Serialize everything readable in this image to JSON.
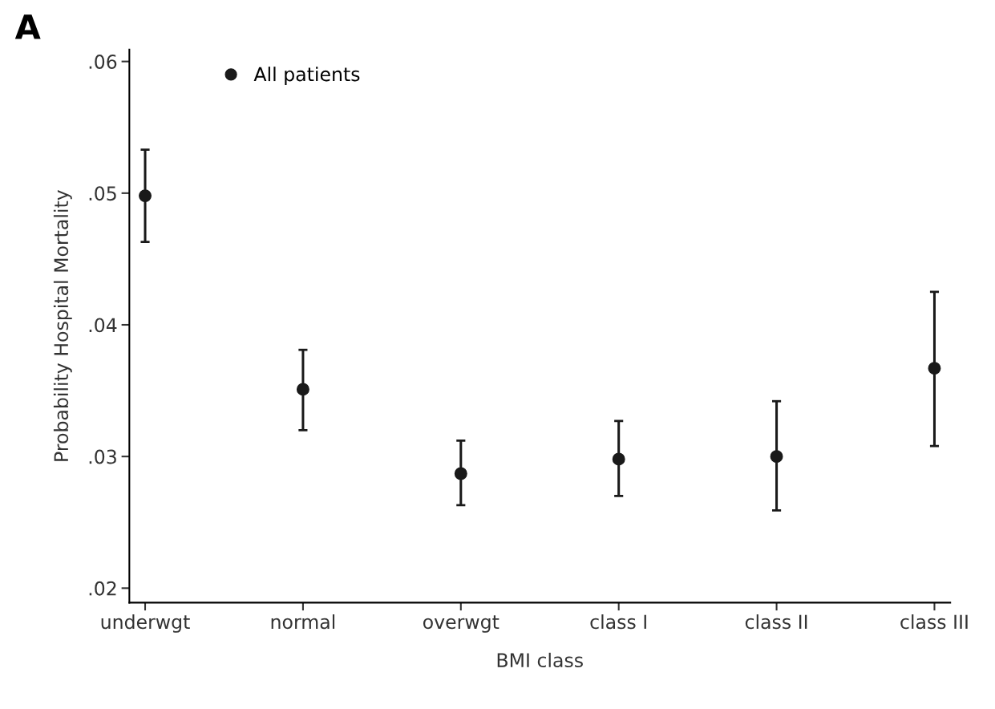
{
  "chart_data": {
    "type": "scatter",
    "title": "A",
    "xlabel": "BMI class",
    "ylabel": "Probability Hospital Mortality",
    "categories": [
      "underwgt",
      "normal",
      "overwgt",
      "class I",
      "class II",
      "class III"
    ],
    "series": [
      {
        "name": "All patients",
        "color": "#1a1a1a",
        "values": [
          0.0498,
          0.0351,
          0.0287,
          0.0298,
          0.03,
          0.0367
        ],
        "errors": [
          [
            0.0463,
            0.0533
          ],
          [
            0.032,
            0.0381
          ],
          [
            0.0263,
            0.0312
          ],
          [
            0.027,
            0.0327
          ],
          [
            0.0259,
            0.0342
          ],
          [
            0.0308,
            0.0425
          ]
        ]
      }
    ],
    "ylim": [
      0.0189,
      0.0609
    ],
    "yticks": [
      {
        "value": 0.02,
        "label": ".02"
      },
      {
        "value": 0.03,
        "label": ".03"
      },
      {
        "value": 0.04,
        "label": ".04"
      },
      {
        "value": 0.05,
        "label": ".05"
      },
      {
        "value": 0.06,
        "label": ".06"
      }
    ],
    "marker": "circle",
    "legend": "top left",
    "grid": false
  }
}
